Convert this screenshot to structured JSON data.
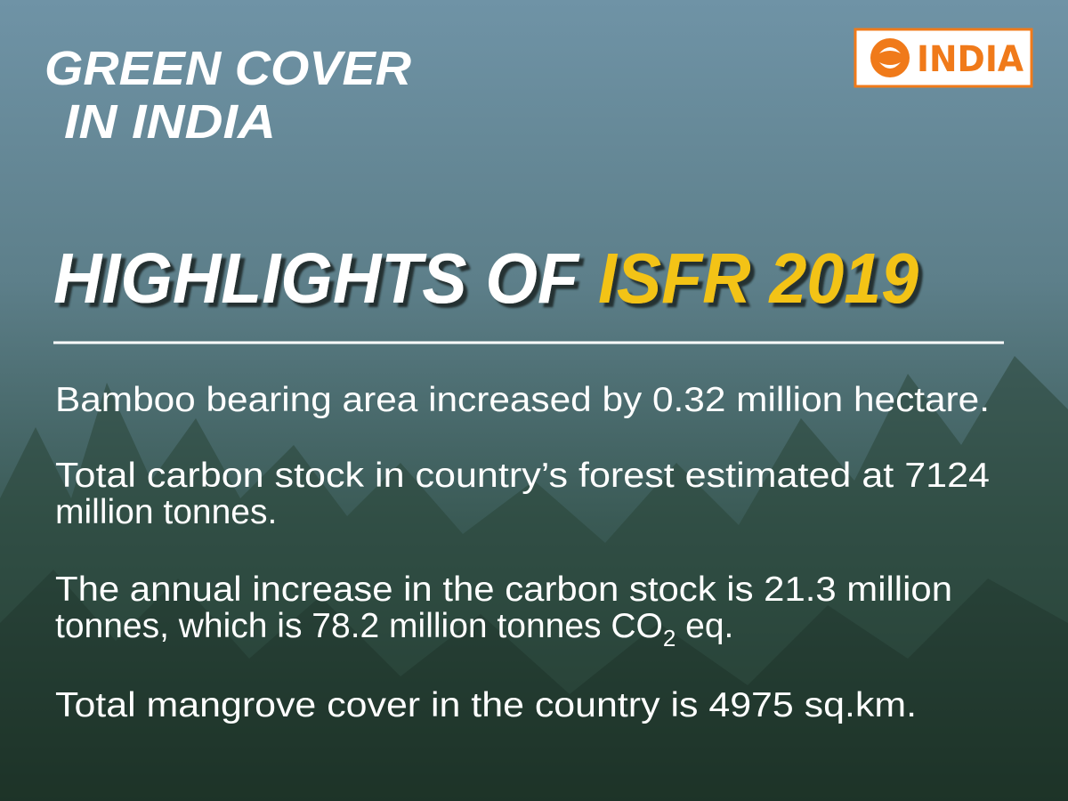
{
  "header": {
    "title_lines": [
      "GREEN COVER",
      "IN INDIA"
    ],
    "logo_text": "INDIA"
  },
  "heading": {
    "text": "HIGHLIGHTS OF",
    "highlight": "ISFR 2019"
  },
  "highlights": [
    {
      "lines": [
        "Bamboo bearing area increased by 0.32 million hectare."
      ]
    },
    {
      "lines": [
        "Total carbon stock in country’s forest estimated at 7124",
        "million tonnes."
      ]
    },
    {
      "lines": [
        "The annual increase in the carbon stock is 21.3 million"
      ],
      "last_line": {
        "text": "tonnes, which is 78.2 million tonnes CO",
        "subscript": "2",
        "after": " eq."
      }
    },
    {
      "lines": [
        "Total mangrove cover in the country is 4975 sq.km."
      ]
    }
  ]
}
